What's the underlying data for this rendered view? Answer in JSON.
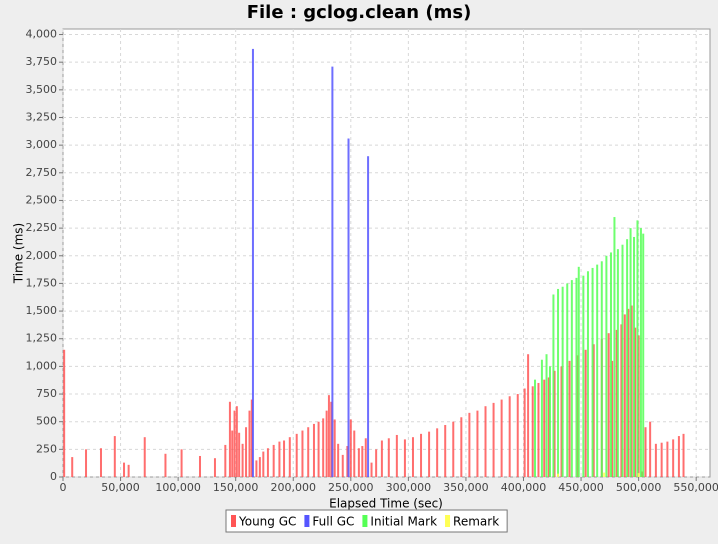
{
  "chart_data": {
    "type": "bar",
    "title": "File : gclog.clean (ms)",
    "x_label": "Elapsed Time (sec)",
    "y_label": "Time (ms)",
    "grid": true,
    "legend": "bottom",
    "xlim": [
      0,
      562000
    ],
    "ylim": [
      0,
      4050
    ],
    "xticks": [
      0,
      {
        "value": 50000,
        "label": "50,000"
      },
      {
        "value": 100000,
        "label": "100,000"
      },
      {
        "value": 150000,
        "label": "150,000"
      },
      {
        "value": 200000,
        "label": "200,000"
      },
      {
        "value": 250000,
        "label": "250,000"
      },
      {
        "value": 300000,
        "label": "300,000"
      },
      {
        "value": 350000,
        "label": "350,000"
      },
      {
        "value": 400000,
        "label": "400,000"
      },
      {
        "value": 450000,
        "label": "450,000"
      },
      {
        "value": 500000,
        "label": "500,000"
      },
      {
        "value": 550000,
        "label": "550,000"
      }
    ],
    "yticks": [
      0,
      250,
      500,
      750,
      {
        "value": 1000,
        "label": "1,000"
      },
      {
        "value": 1250,
        "label": "1,250"
      },
      {
        "value": 1500,
        "label": "1,500"
      },
      {
        "value": 1750,
        "label": "1,750"
      },
      {
        "value": 2000,
        "label": "2,000"
      },
      {
        "value": 2250,
        "label": "2,250"
      },
      {
        "value": 2500,
        "label": "2,500"
      },
      {
        "value": 2750,
        "label": "2,750"
      },
      {
        "value": 3000,
        "label": "3,000"
      },
      {
        "value": 3250,
        "label": "3,250"
      },
      {
        "value": 3500,
        "label": "3,500"
      },
      {
        "value": 3750,
        "label": "3,750"
      },
      {
        "value": 4000,
        "label": "4,000"
      }
    ],
    "series": [
      {
        "name": "Young GC",
        "color": "#ff5555",
        "x": [
          1000,
          8000,
          20000,
          33000,
          45000,
          53000,
          57000,
          71000,
          89000,
          103000,
          119000,
          132000,
          141000,
          145000,
          147000,
          149000,
          151000,
          153000,
          156000,
          159000,
          162000,
          164000,
          168000,
          171000,
          174000,
          178000,
          183000,
          188000,
          192000,
          197000,
          203000,
          208000,
          213000,
          218000,
          222000,
          226000,
          229000,
          231000,
          233000,
          236000,
          239000,
          243000,
          247000,
          250000,
          253000,
          257000,
          260000,
          263000,
          268000,
          272000,
          277000,
          283000,
          290000,
          297000,
          304000,
          311000,
          318000,
          325000,
          332000,
          339000,
          346000,
          353000,
          360000,
          367000,
          374000,
          381000,
          388000,
          395000,
          401000,
          404000,
          408000,
          413000,
          418000,
          422000,
          427000,
          433000,
          440000,
          447000,
          454000,
          461000,
          468000,
          474000,
          477000,
          481000,
          485000,
          488000,
          491000,
          494000,
          497000,
          500000,
          503000,
          506000,
          510000,
          515000,
          520000,
          525000,
          530000,
          535000,
          539000
        ],
        "values": [
          1150,
          180,
          250,
          260,
          370,
          130,
          110,
          360,
          210,
          250,
          190,
          170,
          290,
          680,
          420,
          600,
          640,
          400,
          300,
          450,
          600,
          700,
          150,
          180,
          230,
          260,
          290,
          320,
          330,
          360,
          390,
          420,
          450,
          480,
          500,
          530,
          600,
          740,
          680,
          520,
          300,
          200,
          280,
          520,
          420,
          260,
          280,
          350,
          130,
          250,
          330,
          350,
          380,
          340,
          360,
          390,
          410,
          440,
          470,
          500,
          540,
          580,
          600,
          640,
          670,
          700,
          730,
          750,
          800,
          1110,
          820,
          850,
          880,
          900,
          960,
          1000,
          1050,
          1100,
          1150,
          1200,
          1250,
          1300,
          1050,
          1330,
          1380,
          1470,
          1520,
          1550,
          1350,
          1280,
          50,
          450,
          500,
          300,
          310,
          320,
          340,
          370,
          390
        ]
      },
      {
        "name": "Full GC",
        "color": "#5555ff",
        "x": [
          165000,
          234000,
          248000,
          265000
        ],
        "values": [
          3870,
          3710,
          3060,
          2900
        ]
      },
      {
        "name": "Initial Mark",
        "color": "#55ff55",
        "x": [
          410000,
          416000,
          420000,
          423000,
          426000,
          430000,
          434000,
          438000,
          442000,
          446000,
          448000,
          452000,
          456000,
          460000,
          464000,
          468000,
          472000,
          476000,
          479000,
          482000,
          486000,
          490000,
          493000,
          496000,
          499000,
          502000,
          504000
        ],
        "values": [
          880,
          1060,
          1110,
          1000,
          1650,
          1700,
          1720,
          1750,
          1780,
          1800,
          1900,
          1820,
          1860,
          1890,
          1920,
          1950,
          2000,
          2030,
          2350,
          2060,
          2100,
          2150,
          2250,
          2170,
          2320,
          2250,
          2200
        ]
      },
      {
        "name": "Remark",
        "color": "#ffff55",
        "x": [
          430000,
          470000,
          500000
        ],
        "values": [
          30,
          40,
          35
        ]
      }
    ]
  }
}
